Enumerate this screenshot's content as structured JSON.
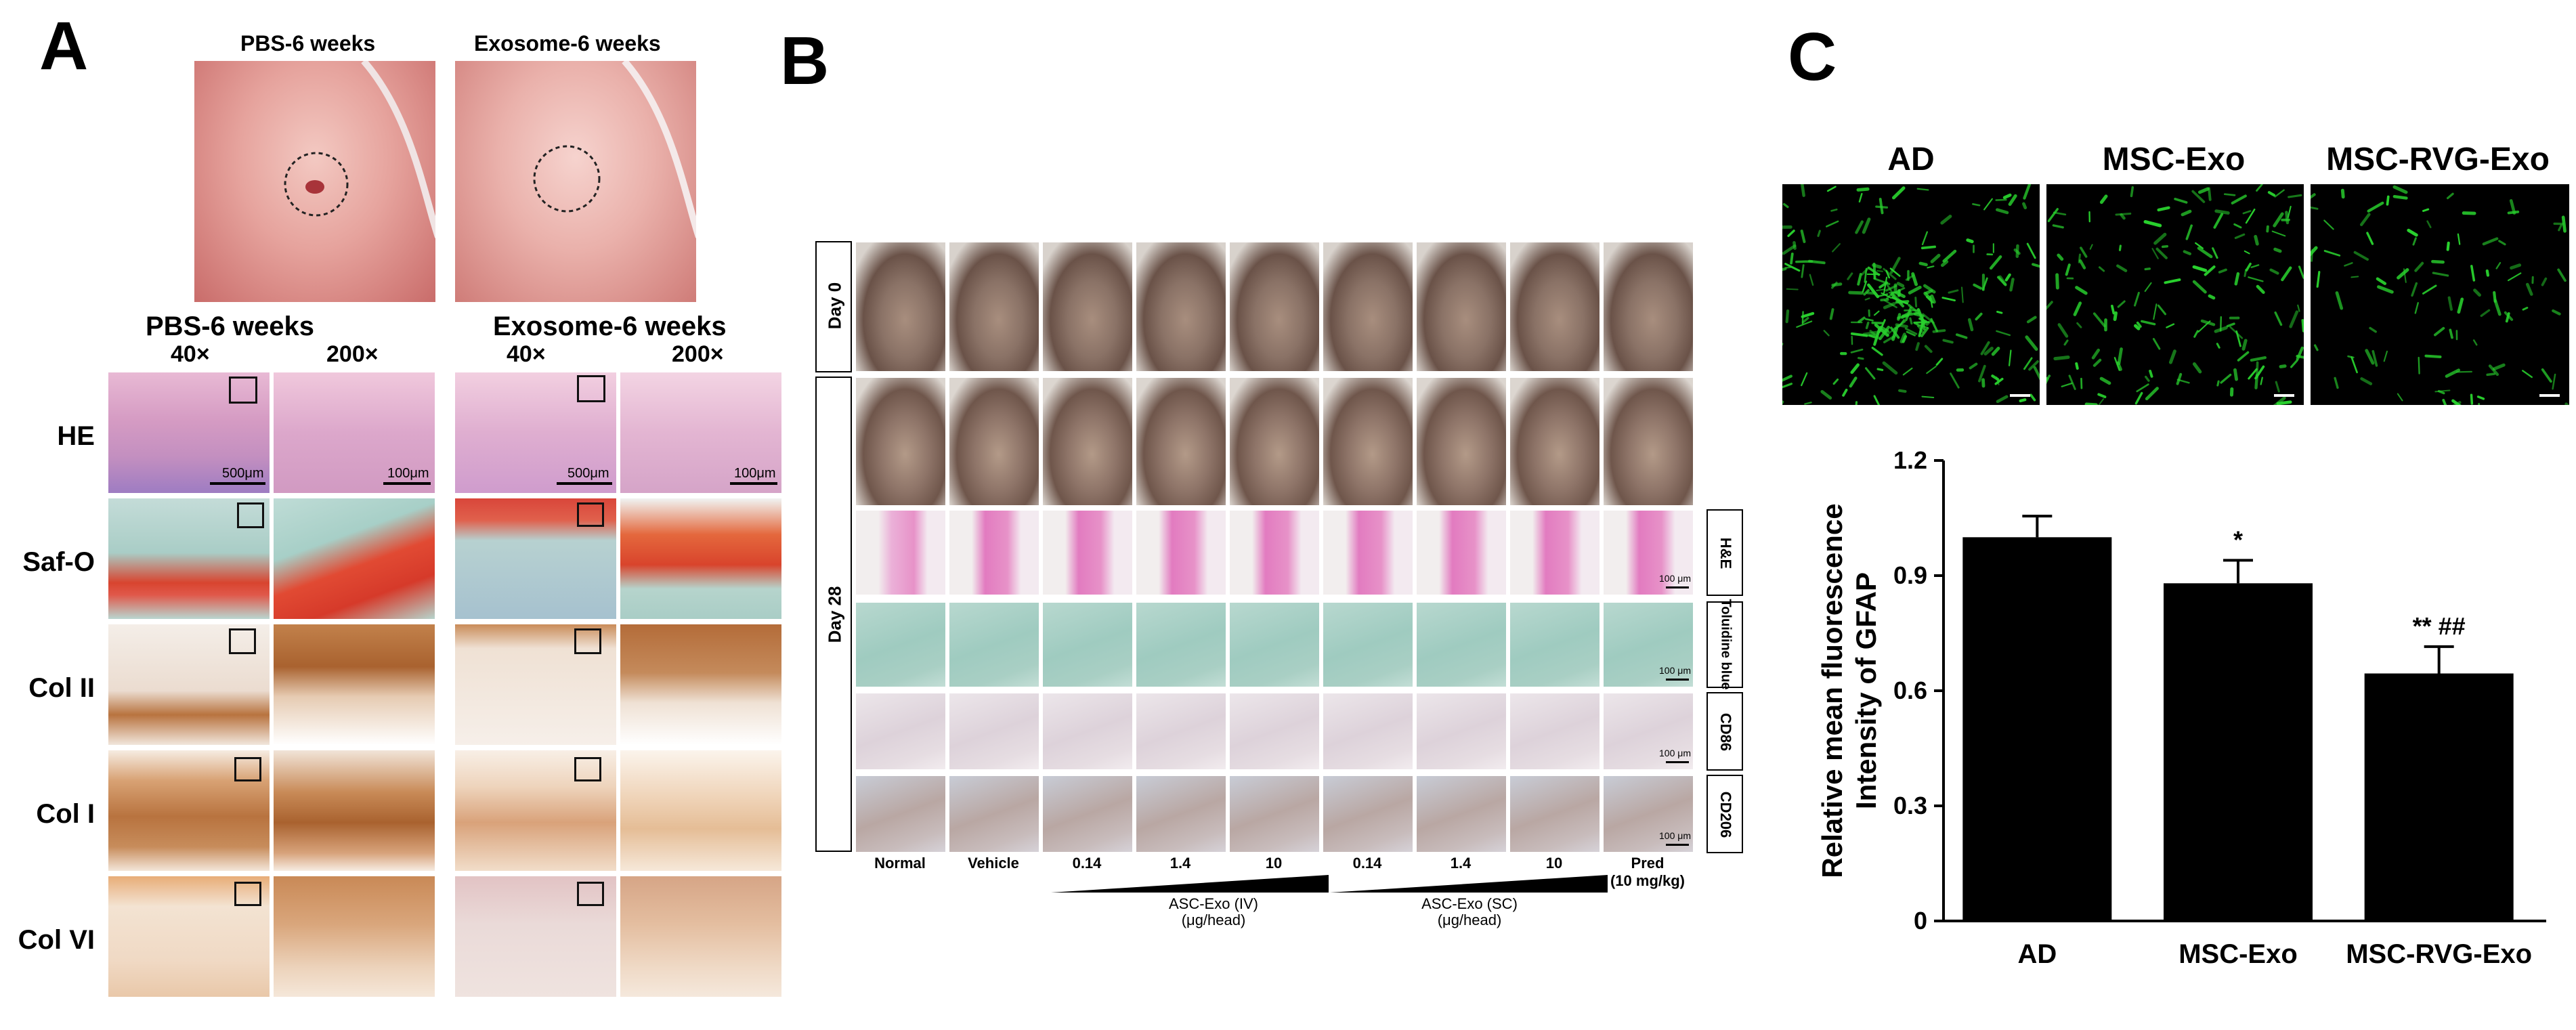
{
  "panel_a": {
    "letter": "A",
    "photo_titles": [
      "PBS-6 weeks",
      "Exosome-6 weeks"
    ],
    "group_titles": [
      "PBS-6 weeks",
      "Exosome-6 weeks"
    ],
    "mag_labels": [
      "40×",
      "200×",
      "40×",
      "200×"
    ],
    "stain_rows": [
      "HE",
      "Saf-O",
      "Col II",
      "Col I",
      "Col VI"
    ],
    "scale_labels": [
      "500μm",
      "100μm",
      "500μm",
      "100μm"
    ]
  },
  "panel_b": {
    "letter": "B",
    "day_labels": [
      "Day 0",
      "Day 28"
    ],
    "stain_labels": [
      "H&E",
      "Toluidine blue",
      "CD86",
      "CD206"
    ],
    "scale_label": "100 μm",
    "columns": [
      "Normal",
      "Vehicle",
      "0.14",
      "1.4",
      "10",
      "0.14",
      "1.4",
      "10",
      "Pred"
    ],
    "pred_dose": "(10 mg/kg)",
    "iv_label": "ASC-Exo (IV)",
    "iv_unit": "(μg/head)",
    "sc_label": "ASC-Exo (SC)",
    "sc_unit": "(μg/head)"
  },
  "panel_c": {
    "letter": "C",
    "image_titles": [
      "AD",
      "MSC-Exo",
      "MSC-RVG-Exo"
    ],
    "annotations": [
      "*",
      "** ##"
    ]
  },
  "chart_data": {
    "type": "bar",
    "categories": [
      "AD",
      "MSC-Exo",
      "MSC-RVG-Exo"
    ],
    "values": [
      1.0,
      0.88,
      0.645
    ],
    "errors": [
      0.055,
      0.06,
      0.07
    ],
    "ylabel": "Relative mean fluorescence Intensity of GFAP",
    "ylim": [
      0,
      1.2
    ],
    "yticks": [
      "0",
      "0.3",
      "0.6",
      "0.9",
      "1.2"
    ],
    "bar_color": "#000000"
  },
  "colors": {
    "he_pink": "#d9a3c8",
    "safo_red": "#d63a2a",
    "safo_teal": "#9cc9c2",
    "dab_brown": "#b8733f",
    "toluidine": "#a9cfc4",
    "fluor_green": "#29d12e"
  }
}
